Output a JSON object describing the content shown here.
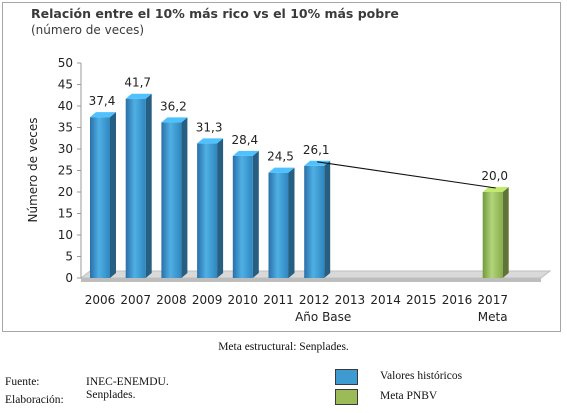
{
  "title": "Relación entre el 10% más rico vs el 10% más pobre",
  "subtitle": "(número de veces)",
  "chart_data": {
    "type": "bar",
    "ylabel": "Número de veces",
    "ylim": [
      0,
      50
    ],
    "yticks": [
      0,
      5,
      10,
      15,
      20,
      25,
      30,
      35,
      40,
      45,
      50
    ],
    "categories": [
      "2006",
      "2007",
      "2008",
      "2009",
      "2010",
      "2011",
      "2012",
      "2013",
      "2014",
      "2015",
      "2016",
      "2017"
    ],
    "category_sublabels": {
      "2012": "Año Base",
      "2017": "Meta"
    },
    "series": [
      {
        "name": "Valores históricos",
        "color": "#3e9ad1",
        "values": [
          37.4,
          41.7,
          36.2,
          31.3,
          28.4,
          24.5,
          26.1,
          null,
          null,
          null,
          null,
          null
        ]
      },
      {
        "name": "Meta PNBV",
        "color": "#9bbb59",
        "values": [
          null,
          null,
          null,
          null,
          null,
          null,
          null,
          null,
          null,
          null,
          null,
          20.0
        ]
      }
    ],
    "data_labels": [
      "37,4",
      "41,7",
      "36,2",
      "31,3",
      "28,4",
      "24,5",
      "26,1",
      "",
      "",
      "",
      "",
      "20,0"
    ],
    "trend_line": {
      "from": "2012",
      "to": "2017"
    }
  },
  "caption": "Meta estructural: Senplades.",
  "footer": {
    "fuente_label": "Fuente:",
    "fuente_value": "INEC-ENEMDU.",
    "elaboracion_label": "Elaboración:",
    "elaboracion_value": "Senplades."
  },
  "legend": [
    {
      "label": "Valores históricos",
      "color": "#3e9ad1"
    },
    {
      "label": "Meta PNBV",
      "color": "#9bbb59"
    }
  ]
}
